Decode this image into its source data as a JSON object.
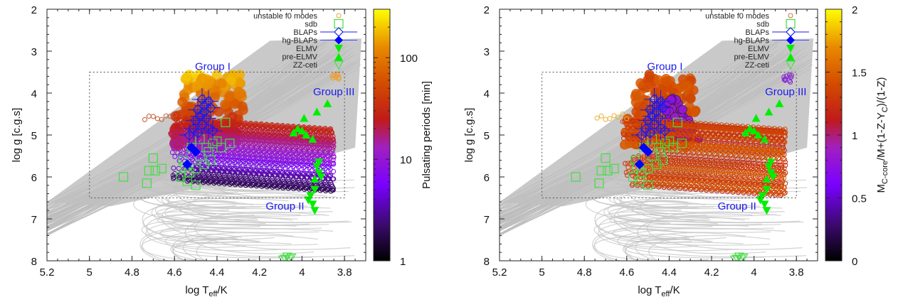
{
  "chart_data": [
    {
      "type": "scatter",
      "panel": "left",
      "xlabel": "log T_eff/K",
      "xlabel_main": "log T",
      "xlabel_sub": "eff",
      "xlabel_tail": "/K",
      "ylabel": "log g [c.g.s]",
      "xlim": [
        5.2,
        3.7
      ],
      "ylim": [
        2,
        8
      ],
      "x_ticks": [
        "5.2",
        "5",
        "4.8",
        "4.6",
        "4.4",
        "4.2",
        "4",
        "3.8"
      ],
      "x_tick_values": [
        5.2,
        5.0,
        4.8,
        4.6,
        4.4,
        4.2,
        4.0,
        3.8
      ],
      "y_ticks": [
        "2",
        "3",
        "4",
        "5",
        "6",
        "7",
        "8"
      ],
      "y_tick_values": [
        2,
        3,
        4,
        5,
        6,
        7,
        8
      ],
      "grid": false,
      "legend_position": "top-right",
      "colorbar": {
        "label": "Pulsating periods [min]",
        "scale": "log",
        "range": [
          1,
          300
        ],
        "ticks": [
          "1",
          "10",
          "100"
        ],
        "tick_values": [
          1,
          10,
          100
        ],
        "colormap": [
          "#000000",
          "#3a0a6b",
          "#7a00ff",
          "#a020c0",
          "#c01a1a",
          "#d24a00",
          "#e88a00",
          "#ffff00"
        ]
      },
      "selection_box": {
        "teff": [
          5.0,
          3.8
        ],
        "logg": [
          3.5,
          6.5
        ]
      },
      "annotations": [
        {
          "text": "Group I",
          "x": 4.42,
          "y": 3.45
        },
        {
          "text": "Group III",
          "x": 3.85,
          "y": 4.05
        },
        {
          "text": "Group II",
          "x": 4.08,
          "y": 6.78
        }
      ]
    },
    {
      "type": "scatter",
      "panel": "right",
      "xlabel": "log T_eff/K",
      "xlabel_main": "log T",
      "xlabel_sub": "eff",
      "xlabel_tail": "/K",
      "ylabel": "log g [c.g.s]",
      "xlim": [
        5.2,
        3.7
      ],
      "ylim": [
        2,
        8
      ],
      "x_ticks": [
        "5.2",
        "5",
        "4.8",
        "4.6",
        "4.4",
        "4.2",
        "4",
        "3.8"
      ],
      "x_tick_values": [
        5.2,
        5.0,
        4.8,
        4.6,
        4.4,
        4.2,
        4.0,
        3.8
      ],
      "y_ticks": [
        "2",
        "3",
        "4",
        "5",
        "6",
        "7",
        "8"
      ],
      "y_tick_values": [
        2,
        3,
        4,
        5,
        6,
        7,
        8
      ],
      "grid": false,
      "legend_position": "top-right",
      "colorbar": {
        "label": "M_C-core/M+(1-Z-Y_C)/(1-Z)",
        "label_parts": [
          "M",
          "C-core",
          "/M+(1-Z-Y",
          "C",
          ")/(1-Z)"
        ],
        "scale": "linear",
        "range": [
          0,
          2
        ],
        "ticks": [
          "0",
          "0.5",
          "1",
          "1.5",
          "2"
        ],
        "tick_values": [
          0,
          0.5,
          1,
          1.5,
          2
        ],
        "colormap": [
          "#000000",
          "#3a0a6b",
          "#7a00ff",
          "#a020c0",
          "#c01a1a",
          "#d24a00",
          "#e88a00",
          "#ffff00"
        ]
      },
      "selection_box": {
        "teff": [
          5.0,
          3.8
        ],
        "logg": [
          3.5,
          6.5
        ]
      },
      "annotations": [
        {
          "text": "Group I",
          "x": 4.42,
          "y": 3.45
        },
        {
          "text": "Group III",
          "x": 3.85,
          "y": 4.05
        },
        {
          "text": "Group II",
          "x": 4.08,
          "y": 6.78
        }
      ]
    }
  ],
  "legend": [
    {
      "label": "unstable f0 modes",
      "marker": "open-circle",
      "color": "#e8a23a"
    },
    {
      "label": "sdb",
      "marker": "open-square",
      "color": "#44dd44"
    },
    {
      "label": "BLAPs",
      "marker": "open-diamond-errorbar",
      "color": "#1a1aee"
    },
    {
      "label": "hg-BLAPs",
      "marker": "filled-diamond-errorbar",
      "color": "#0000ff"
    },
    {
      "label": "ELMV",
      "marker": "filled-triangle-down",
      "color": "#00ee00"
    },
    {
      "label": "pre-ELMV",
      "marker": "filled-triangle-up",
      "color": "#00ee00"
    },
    {
      "label": "ZZ-ceti",
      "marker": "open-triangle-down",
      "color": "#44dd44"
    }
  ],
  "stars": {
    "blaps": [
      [
        4.47,
        4.15
      ],
      [
        4.44,
        4.2
      ],
      [
        4.49,
        4.4
      ],
      [
        4.46,
        4.3
      ],
      [
        4.43,
        4.35
      ],
      [
        4.48,
        4.55
      ],
      [
        4.45,
        4.6
      ],
      [
        4.47,
        4.75
      ],
      [
        4.44,
        4.85
      ],
      [
        4.51,
        4.85
      ],
      [
        4.53,
        5.0
      ],
      [
        4.49,
        4.95
      ],
      [
        4.42,
        4.9
      ],
      [
        4.46,
        4.45
      ],
      [
        4.5,
        4.65
      ]
    ],
    "hg_blaps": [
      [
        4.52,
        5.3
      ],
      [
        4.5,
        5.4
      ],
      [
        4.54,
        5.7
      ]
    ],
    "sdb": [
      [
        4.84,
        6.0
      ],
      [
        4.73,
        6.15
      ],
      [
        4.72,
        5.85
      ],
      [
        4.7,
        5.55
      ],
      [
        4.69,
        5.85
      ],
      [
        4.66,
        5.8
      ],
      [
        4.56,
        5.6
      ],
      [
        4.55,
        5.75
      ],
      [
        4.53,
        5.9
      ],
      [
        4.5,
        5.8
      ],
      [
        4.48,
        5.5
      ],
      [
        4.46,
        5.7
      ],
      [
        4.44,
        5.4
      ],
      [
        4.42,
        5.2
      ],
      [
        4.4,
        5.15
      ],
      [
        4.38,
        5.3
      ],
      [
        4.36,
        4.7
      ],
      [
        4.34,
        5.2
      ],
      [
        4.52,
        5.3
      ],
      [
        4.48,
        5.1
      ],
      [
        4.45,
        5.3
      ],
      [
        4.57,
        6.0
      ],
      [
        4.54,
        6.1
      ],
      [
        4.5,
        6.2
      ],
      [
        4.43,
        5.6
      ]
    ],
    "elmv": [
      [
        3.93,
        5.75
      ],
      [
        3.92,
        5.9
      ],
      [
        3.91,
        6.0
      ],
      [
        3.94,
        6.3
      ],
      [
        3.96,
        6.45
      ],
      [
        3.97,
        6.55
      ],
      [
        3.95,
        6.65
      ],
      [
        3.94,
        6.8
      ],
      [
        3.92,
        5.65
      ]
    ],
    "pre_elmv": [
      [
        3.88,
        4.25
      ],
      [
        3.93,
        4.45
      ],
      [
        3.99,
        4.6
      ],
      [
        4.02,
        4.85
      ],
      [
        4.0,
        4.9
      ],
      [
        4.04,
        4.95
      ],
      [
        3.98,
        5.0
      ],
      [
        3.95,
        5.1
      ],
      [
        3.94,
        6.05
      ]
    ],
    "zz_ceti": [
      [
        4.08,
        7.95
      ],
      [
        4.06,
        7.95
      ],
      [
        4.07,
        7.9
      ],
      [
        4.05,
        7.92
      ],
      [
        4.09,
        7.97
      ]
    ]
  }
}
